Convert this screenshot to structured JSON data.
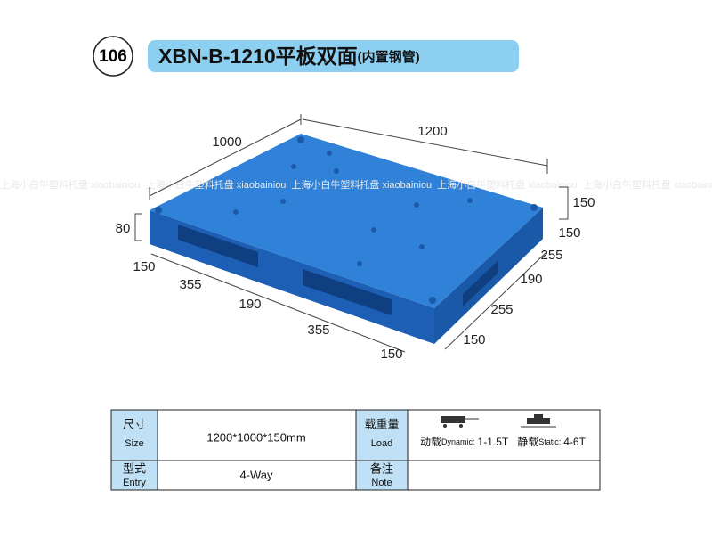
{
  "header": {
    "number": "106",
    "title": "XBN-B-1210平板双面",
    "subtitle": "(内置钢管)"
  },
  "watermark": "上海小白牛塑料托盘 xiaobainiou",
  "dimensions": {
    "width": "1000",
    "length": "1200",
    "height": "150",
    "foot_height": "80",
    "front": [
      "150",
      "355",
      "190",
      "355",
      "150"
    ],
    "side": [
      "150",
      "255",
      "190",
      "255",
      "150"
    ]
  },
  "table": {
    "rows": [
      {
        "label": "尺寸",
        "label_en": "Size",
        "value": "1200*1000*150mm",
        "label2": "载重量",
        "label2_en": "Load",
        "dynamic": "动载",
        "dynamic_en": "Dynamic:",
        "dynamic_value": "1-1.5T",
        "static": "静载",
        "static_en": "Static:",
        "static_value": "4-6T"
      },
      {
        "label": "型式",
        "label_en": "Entry",
        "value": "4-Way",
        "label2": "备注",
        "label2_en": "Note"
      }
    ]
  }
}
